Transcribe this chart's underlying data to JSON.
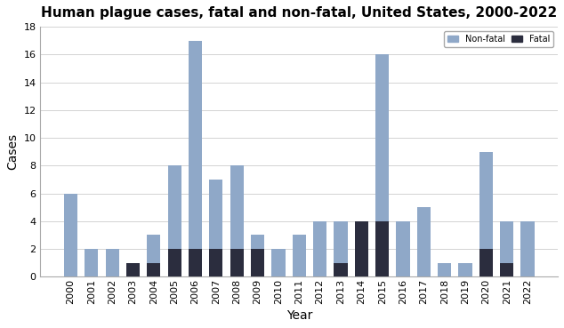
{
  "years": [
    2000,
    2001,
    2002,
    2003,
    2004,
    2005,
    2006,
    2007,
    2008,
    2009,
    2010,
    2011,
    2012,
    2013,
    2014,
    2015,
    2016,
    2017,
    2018,
    2019,
    2020,
    2021,
    2022
  ],
  "total_cases": [
    6,
    2,
    2,
    1,
    3,
    8,
    17,
    7,
    8,
    3,
    2,
    3,
    4,
    4,
    4,
    16,
    4,
    5,
    1,
    1,
    9,
    4,
    4
  ],
  "fatal_cases": [
    0,
    0,
    0,
    1,
    1,
    2,
    2,
    2,
    2,
    2,
    0,
    0,
    0,
    1,
    4,
    4,
    0,
    0,
    0,
    0,
    2,
    1,
    0
  ],
  "nonfatal_color": "#8fa8c8",
  "fatal_color": "#2b2d3e",
  "background_color": "#ffffff",
  "title": "Human plague cases, fatal and non-fatal, United States, 2000-2022",
  "xlabel": "Year",
  "ylabel": "Cases",
  "ylim": [
    0,
    18
  ],
  "yticks": [
    0,
    2,
    4,
    6,
    8,
    10,
    12,
    14,
    16,
    18
  ],
  "legend_nonfatal": "Non-fatal",
  "legend_fatal": "Fatal",
  "title_fontsize": 11,
  "axis_label_fontsize": 10,
  "tick_fontsize": 8,
  "bar_width": 0.65
}
